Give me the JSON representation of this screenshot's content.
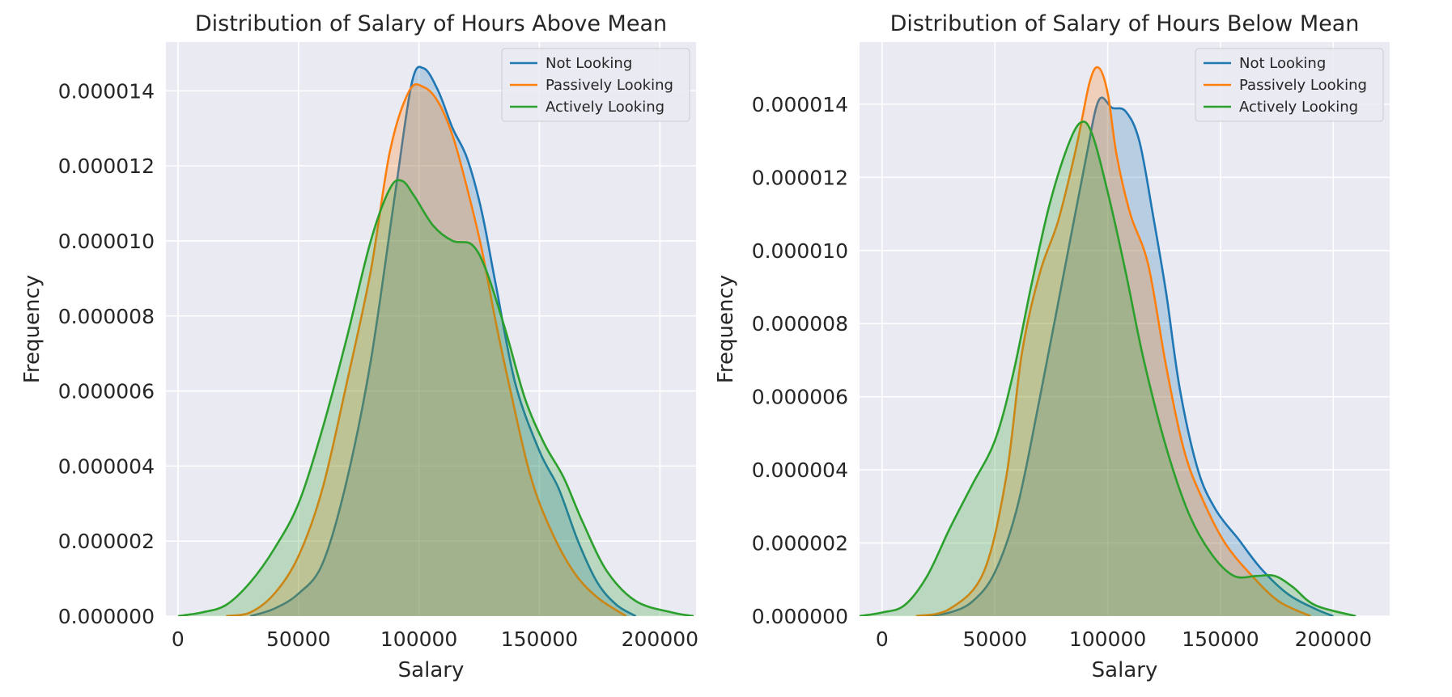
{
  "chart_data": [
    {
      "type": "area",
      "title": "Distribution of Salary of Hours Above Mean",
      "xlabel": "Salary",
      "ylabel": "Frequency",
      "xlim": [
        -5000,
        215000
      ],
      "ylim": [
        0,
        1.53e-05
      ],
      "xticks": [
        0,
        50000,
        100000,
        150000,
        200000
      ],
      "xtick_labels": [
        "0",
        "50000",
        "100000",
        "150000",
        "200000"
      ],
      "yticks": [
        0,
        2e-06,
        4e-06,
        6e-06,
        8e-06,
        1e-05,
        1.2e-05,
        1.4e-05
      ],
      "ytick_labels": [
        "0.000000",
        "0.000002",
        "0.000004",
        "0.000006",
        "0.000008",
        "0.000010",
        "0.000012",
        "0.000014"
      ],
      "grid": true,
      "legend_position": "top-right",
      "series": [
        {
          "name": "Not Looking",
          "color": "#1f77b4",
          "points": [
            [
              30000,
              0
            ],
            [
              40000,
              2e-07
            ],
            [
              50000,
              6e-07
            ],
            [
              60000,
              1.4e-06
            ],
            [
              70000,
              3.6e-06
            ],
            [
              80000,
              6.8e-06
            ],
            [
              90000,
              1.12e-05
            ],
            [
              97000,
              1.42e-05
            ],
            [
              102000,
              1.46e-05
            ],
            [
              108000,
              1.4e-05
            ],
            [
              114000,
              1.3e-05
            ],
            [
              120000,
              1.22e-05
            ],
            [
              126000,
              1.08e-05
            ],
            [
              132000,
              8.8e-06
            ],
            [
              140000,
              6.2e-06
            ],
            [
              150000,
              4.4e-06
            ],
            [
              158000,
              3.4e-06
            ],
            [
              166000,
              2e-06
            ],
            [
              174000,
              9e-07
            ],
            [
              182000,
              3e-07
            ],
            [
              190000,
              0
            ]
          ]
        },
        {
          "name": "Passively Looking",
          "color": "#ff7f0e",
          "points": [
            [
              20000,
              0
            ],
            [
              30000,
              1e-07
            ],
            [
              40000,
              6e-07
            ],
            [
              50000,
              1.6e-06
            ],
            [
              60000,
              3.4e-06
            ],
            [
              70000,
              6.2e-06
            ],
            [
              80000,
              9.2e-06
            ],
            [
              88000,
              1.24e-05
            ],
            [
              96000,
              1.4e-05
            ],
            [
              102000,
              1.41e-05
            ],
            [
              108000,
              1.37e-05
            ],
            [
              114000,
              1.28e-05
            ],
            [
              120000,
              1.14e-05
            ],
            [
              126000,
              9.8e-06
            ],
            [
              132000,
              7.8e-06
            ],
            [
              138000,
              6e-06
            ],
            [
              146000,
              3.8e-06
            ],
            [
              154000,
              2.4e-06
            ],
            [
              164000,
              1.2e-06
            ],
            [
              174000,
              5e-07
            ],
            [
              186000,
              0
            ]
          ]
        },
        {
          "name": "Actively Looking",
          "color": "#2ca02c",
          "points": [
            [
              0,
              0
            ],
            [
              10000,
              1e-07
            ],
            [
              20000,
              3e-07
            ],
            [
              30000,
              9e-07
            ],
            [
              40000,
              1.8e-06
            ],
            [
              50000,
              3e-06
            ],
            [
              60000,
              5e-06
            ],
            [
              70000,
              7.4e-06
            ],
            [
              80000,
              1e-05
            ],
            [
              88000,
              1.14e-05
            ],
            [
              93000,
              1.16e-05
            ],
            [
              98000,
              1.12e-05
            ],
            [
              106000,
              1.04e-05
            ],
            [
              114000,
              1e-05
            ],
            [
              122000,
              9.9e-06
            ],
            [
              128000,
              9.2e-06
            ],
            [
              136000,
              7.6e-06
            ],
            [
              144000,
              5.8e-06
            ],
            [
              152000,
              4.6e-06
            ],
            [
              160000,
              3.7e-06
            ],
            [
              168000,
              2.5e-06
            ],
            [
              178000,
              1.2e-06
            ],
            [
              190000,
              4e-07
            ],
            [
              205000,
              1e-07
            ],
            [
              214000,
              0
            ]
          ]
        }
      ]
    },
    {
      "type": "area",
      "title": "Distribution of Salary of Hours Below Mean",
      "xlabel": "Salary",
      "ylabel": "Frequency",
      "xlim": [
        -10000,
        225000
      ],
      "ylim": [
        0,
        1.57e-05
      ],
      "xticks": [
        0,
        50000,
        100000,
        150000,
        200000
      ],
      "xtick_labels": [
        "0",
        "50000",
        "100000",
        "150000",
        "200000"
      ],
      "yticks": [
        0,
        2e-06,
        4e-06,
        6e-06,
        8e-06,
        1e-05,
        1.2e-05,
        1.4e-05
      ],
      "ytick_labels": [
        "0.000000",
        "0.000002",
        "0.000004",
        "0.000006",
        "0.000008",
        "0.000010",
        "0.000012",
        "0.000014"
      ],
      "grid": true,
      "legend_position": "top-right",
      "series": [
        {
          "name": "Not Looking",
          "color": "#1f77b4",
          "points": [
            [
              20000,
              0
            ],
            [
              30000,
              1e-07
            ],
            [
              40000,
              4e-07
            ],
            [
              50000,
              1.2e-06
            ],
            [
              60000,
              3e-06
            ],
            [
              70000,
              6e-06
            ],
            [
              80000,
              9.2e-06
            ],
            [
              90000,
              1.24e-05
            ],
            [
              96000,
              1.41e-05
            ],
            [
              102000,
              1.39e-05
            ],
            [
              108000,
              1.38e-05
            ],
            [
              114000,
              1.3e-05
            ],
            [
              120000,
              1.1e-05
            ],
            [
              126000,
              8.8e-06
            ],
            [
              132000,
              6.2e-06
            ],
            [
              140000,
              4e-06
            ],
            [
              148000,
              2.9e-06
            ],
            [
              158000,
              2.1e-06
            ],
            [
              168000,
              1.3e-06
            ],
            [
              180000,
              6e-07
            ],
            [
              192000,
              2e-07
            ],
            [
              200000,
              0
            ]
          ]
        },
        {
          "name": "Passively Looking",
          "color": "#ff7f0e",
          "points": [
            [
              15000,
              0
            ],
            [
              30000,
              2e-07
            ],
            [
              45000,
              1.2e-06
            ],
            [
              55000,
              3.8e-06
            ],
            [
              62000,
              7.2e-06
            ],
            [
              70000,
              9.4e-06
            ],
            [
              78000,
              1.08e-05
            ],
            [
              86000,
              1.28e-05
            ],
            [
              92000,
              1.46e-05
            ],
            [
              96000,
              1.5e-05
            ],
            [
              100000,
              1.43e-05
            ],
            [
              104000,
              1.26e-05
            ],
            [
              110000,
              1.1e-05
            ],
            [
              118000,
              9.6e-06
            ],
            [
              126000,
              6.8e-06
            ],
            [
              134000,
              4.5e-06
            ],
            [
              142000,
              3.2e-06
            ],
            [
              152000,
              2e-06
            ],
            [
              164000,
              1.1e-06
            ],
            [
              176000,
              4e-07
            ],
            [
              190000,
              0
            ]
          ]
        },
        {
          "name": "Actively Looking",
          "color": "#2ca02c",
          "points": [
            [
              -10000,
              0
            ],
            [
              0,
              1e-07
            ],
            [
              10000,
              3e-07
            ],
            [
              20000,
              1.1e-06
            ],
            [
              30000,
              2.4e-06
            ],
            [
              40000,
              3.6e-06
            ],
            [
              50000,
              4.8e-06
            ],
            [
              58000,
              6.6e-06
            ],
            [
              66000,
              9e-06
            ],
            [
              74000,
              1.12e-05
            ],
            [
              82000,
              1.28e-05
            ],
            [
              88000,
              1.35e-05
            ],
            [
              93000,
              1.32e-05
            ],
            [
              100000,
              1.16e-05
            ],
            [
              108000,
              9.4e-06
            ],
            [
              116000,
              7e-06
            ],
            [
              126000,
              4.6e-06
            ],
            [
              136000,
              2.8e-06
            ],
            [
              146000,
              1.7e-06
            ],
            [
              156000,
              1.1e-06
            ],
            [
              166000,
              1.1e-06
            ],
            [
              174000,
              1.1e-06
            ],
            [
              182000,
              8e-07
            ],
            [
              192000,
              3e-07
            ],
            [
              210000,
              0
            ]
          ]
        }
      ]
    }
  ]
}
